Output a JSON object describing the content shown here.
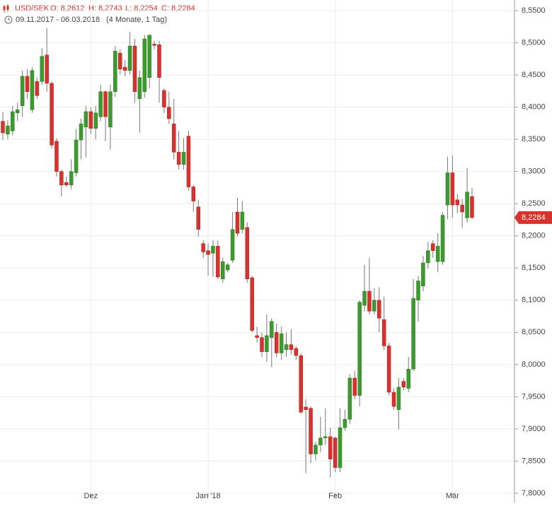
{
  "chart_data": {
    "type": "candlestick",
    "symbol": "USD/SEK",
    "header_ohlc": [
      "O: 8,2612",
      "H: 8,2743",
      "L: 8,2254",
      "C: 8,2284"
    ],
    "date_range": "09.11.2017 - 06.03.2018",
    "period": "(4 Monate, 1 Tag)",
    "last_price_label": "8,2284",
    "up_color": "#3c9a2e",
    "down_color": "#d8322e",
    "grid": true,
    "ylim": [
      7.8,
      8.55
    ],
    "yticks": [
      {
        "value": 8.55,
        "label": "8,5500"
      },
      {
        "value": 8.5,
        "label": "8,5000"
      },
      {
        "value": 8.45,
        "label": "8,4500"
      },
      {
        "value": 8.4,
        "label": "8,4000"
      },
      {
        "value": 8.35,
        "label": "8,3500"
      },
      {
        "value": 8.3,
        "label": "8,3000"
      },
      {
        "value": 8.25,
        "label": "8,2500"
      },
      {
        "value": 8.2,
        "label": "8,2000"
      },
      {
        "value": 8.15,
        "label": "8,1500"
      },
      {
        "value": 8.1,
        "label": "8,1000"
      },
      {
        "value": 8.05,
        "label": "8,0500"
      },
      {
        "value": 8.0,
        "label": "8,0000"
      },
      {
        "value": 7.95,
        "label": "7,9500"
      },
      {
        "value": 7.9,
        "label": "7,9000"
      },
      {
        "value": 7.85,
        "label": "7,8500"
      },
      {
        "value": 7.8,
        "label": "7,8000"
      }
    ],
    "categories": [
      null,
      null,
      null,
      null,
      null,
      null,
      null,
      null,
      null,
      null,
      null,
      null,
      null,
      null,
      null,
      null,
      null,
      null,
      "Dez",
      null,
      null,
      null,
      null,
      null,
      null,
      null,
      null,
      null,
      null,
      null,
      null,
      null,
      null,
      null,
      null,
      null,
      null,
      null,
      null,
      null,
      null,
      null,
      "Jan '18",
      null,
      null,
      null,
      null,
      null,
      null,
      null,
      null,
      null,
      null,
      null,
      null,
      null,
      null,
      null,
      null,
      null,
      null,
      null,
      null,
      null,
      null,
      null,
      null,
      null,
      "Feb",
      null,
      null,
      null,
      null,
      null,
      null,
      null,
      null,
      null,
      null,
      null,
      null,
      null,
      null,
      null,
      null,
      null,
      null,
      null,
      null,
      null,
      null,
      null,
      "Mär",
      null,
      null,
      null,
      null
    ],
    "open": [
      8.378,
      8.358,
      8.363,
      8.391,
      8.402,
      8.448,
      8.396,
      8.44,
      8.44,
      8.481,
      8.437,
      8.347,
      8.3,
      8.283,
      8.279,
      8.298,
      8.349,
      8.369,
      8.393,
      8.367,
      8.385,
      8.424,
      8.369,
      8.424,
      8.484,
      8.462,
      8.457,
      8.495,
      8.413,
      8.424,
      8.446,
      8.498,
      8.497,
      8.426,
      8.4,
      8.374,
      8.33,
      8.311,
      8.355,
      8.276,
      8.245,
      8.188,
      8.177,
      8.173,
      8.184,
      8.133,
      8.147,
      8.162,
      8.237,
      8.21,
      8.213,
      8.135,
      8.045,
      8.042,
      8.02,
      8.042,
      8.05,
      8.018,
      8.023,
      8.031,
      8.025,
      8.014,
      7.934,
      7.932,
      7.861,
      7.875,
      7.886,
      7.888,
      7.886,
      7.84,
      7.902,
      7.915,
      7.979,
      7.952,
      8.092,
      8.114,
      8.083,
      8.1,
      8.07,
      8.029,
      7.957,
      7.93,
      7.974,
      7.963,
      7.993,
      8.1,
      8.122,
      8.158,
      8.188,
      8.16,
      8.16,
      8.248,
      8.298,
      8.256,
      8.248,
      8.228,
      8.2612
    ],
    "high": [
      8.393,
      8.38,
      8.402,
      8.407,
      8.457,
      8.459,
      8.462,
      8.446,
      8.492,
      8.523,
      8.44,
      8.352,
      8.303,
      8.292,
      8.319,
      8.366,
      8.382,
      8.402,
      8.4,
      8.402,
      8.435,
      8.426,
      8.435,
      8.495,
      8.49,
      8.473,
      8.517,
      8.506,
      8.457,
      8.512,
      8.512,
      8.503,
      8.503,
      8.429,
      8.424,
      8.413,
      8.363,
      8.352,
      8.363,
      8.279,
      8.256,
      8.193,
      8.188,
      8.193,
      8.193,
      8.166,
      8.158,
      8.237,
      8.259,
      8.254,
      8.221,
      8.138,
      8.059,
      8.05,
      8.078,
      8.072,
      8.064,
      8.059,
      8.05,
      8.055,
      8.029,
      8.018,
      7.946,
      7.935,
      7.88,
      7.919,
      7.932,
      7.902,
      7.888,
      7.932,
      7.93,
      7.985,
      7.99,
      8.1,
      8.155,
      8.166,
      8.119,
      8.12,
      8.105,
      8.034,
      7.963,
      7.979,
      7.979,
      8.012,
      8.133,
      8.138,
      8.169,
      8.191,
      8.193,
      8.204,
      8.237,
      8.323,
      8.325,
      8.265,
      8.257,
      8.305,
      8.2743
    ],
    "low": [
      8.349,
      8.35,
      8.356,
      8.378,
      8.385,
      8.413,
      8.391,
      8.413,
      8.435,
      8.424,
      8.336,
      8.292,
      8.261,
      8.276,
      8.272,
      8.292,
      8.319,
      8.322,
      8.358,
      8.35,
      8.378,
      8.347,
      8.334,
      8.416,
      8.451,
      8.448,
      8.451,
      8.407,
      8.36,
      8.415,
      8.429,
      8.49,
      8.407,
      8.391,
      8.374,
      8.319,
      8.303,
      8.303,
      8.27,
      8.237,
      8.199,
      8.166,
      8.138,
      8.136,
      8.133,
      8.127,
      8.144,
      8.158,
      8.199,
      8.204,
      8.127,
      8.05,
      8.034,
      8.012,
      8.004,
      7.996,
      8.012,
      8.007,
      8.012,
      8.015,
      8.007,
      7.924,
      7.831,
      7.847,
      7.851,
      7.864,
      7.875,
      7.825,
      7.833,
      7.833,
      7.897,
      7.908,
      7.946,
      7.935,
      8.083,
      8.078,
      8.078,
      8.05,
      8.023,
      7.952,
      7.93,
      7.899,
      7.96,
      7.957,
      7.99,
      8.067,
      8.114,
      8.149,
      8.166,
      8.144,
      8.155,
      8.226,
      8.228,
      8.235,
      8.212,
      8.221,
      8.2254
    ],
    "close": [
      8.36,
      8.371,
      8.393,
      8.396,
      8.448,
      8.424,
      8.457,
      8.418,
      8.479,
      8.437,
      8.341,
      8.3,
      8.279,
      8.279,
      8.3,
      8.349,
      8.374,
      8.393,
      8.367,
      8.391,
      8.424,
      8.385,
      8.424,
      8.487,
      8.459,
      8.457,
      8.495,
      8.424,
      8.446,
      8.506,
      8.512,
      8.496,
      8.446,
      8.4,
      8.382,
      8.33,
      8.311,
      8.33,
      8.276,
      8.254,
      8.21,
      8.175,
      8.171,
      8.184,
      8.136,
      8.16,
      8.155,
      8.21,
      8.204,
      8.237,
      8.133,
      8.053,
      8.042,
      8.02,
      8.045,
      8.067,
      8.018,
      8.048,
      8.031,
      8.023,
      8.014,
      7.926,
      7.93,
      7.861,
      7.875,
      7.886,
      7.888,
      7.853,
      7.84,
      7.902,
      7.915,
      7.979,
      7.952,
      8.097,
      8.114,
      8.083,
      8.1,
      8.072,
      8.029,
      7.957,
      7.935,
      7.965,
      7.965,
      7.993,
      8.103,
      8.13,
      8.158,
      8.177,
      8.177,
      8.184,
      8.232,
      8.298,
      8.248,
      8.248,
      8.237,
      8.268,
      8.2284
    ]
  }
}
